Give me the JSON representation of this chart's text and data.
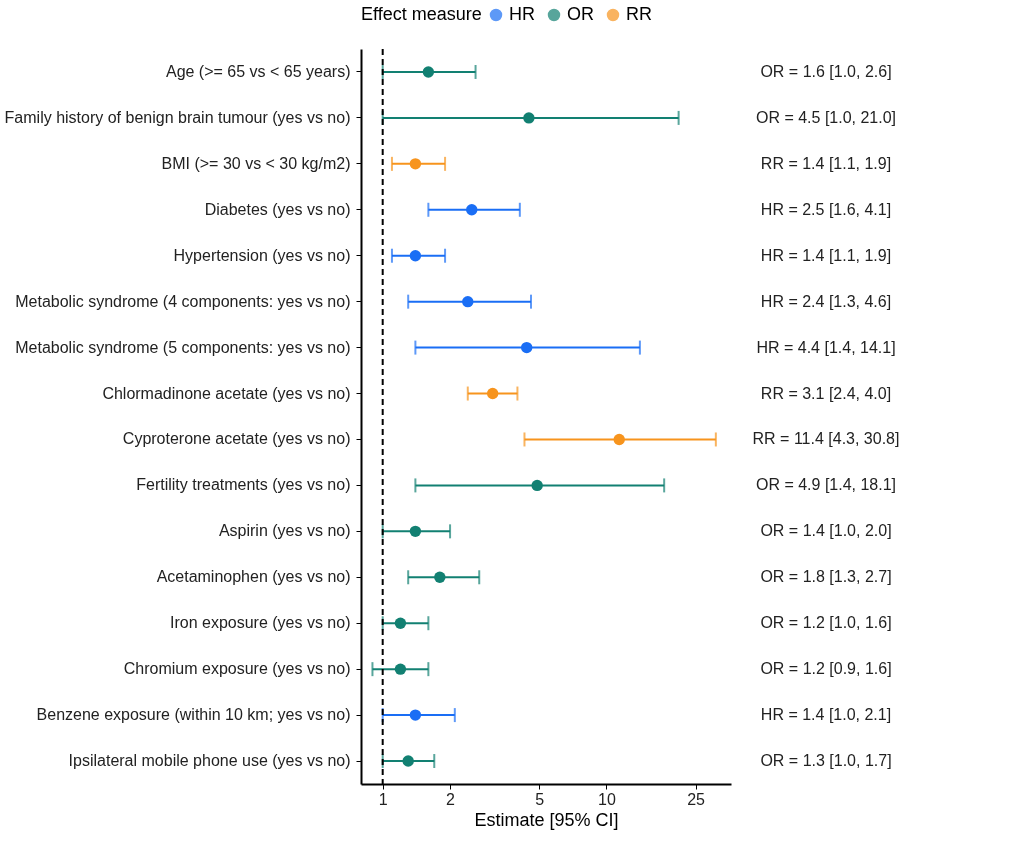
{
  "chart_data": {
    "type": "scatter",
    "orientation": "horizontal",
    "xlabel": "Estimate [95% CI]",
    "legend_title": "Effect measure",
    "legend": "top",
    "grid": false,
    "marker": "circle",
    "log": "x",
    "categories": [
      "Age (>= 65 vs < 65 years)",
      "Family history of benign brain tumour (yes vs no)",
      "BMI (>= 30 vs < 30 kg/m2)",
      "Diabetes (yes vs no)",
      "Hypertension (yes vs no)",
      "Metabolic syndrome (4 components: yes vs no)",
      "Metabolic syndrome (5 components: yes vs no)",
      "Chlormadinone acetate (yes vs no)",
      "Cyproterone acetate (yes vs no)",
      "Fertility treatments (yes vs no)",
      "Aspirin (yes vs no)",
      "Acetaminophen (yes vs no)",
      "Iron exposure (yes vs no)",
      "Chromium exposure (yes vs no)",
      "Benzene exposure (within 10 km; yes vs no)",
      "Ipsilateral mobile phone use (yes vs no)"
    ],
    "xlim": [
      0.8,
      36
    ],
    "xticks": [
      1,
      2,
      5,
      10,
      25
    ],
    "annotations": [
      "OR = 1.6 [1.0, 2.6]",
      "OR = 4.5 [1.0, 21.0]",
      "RR = 1.4 [1.1, 1.9]",
      "HR = 2.5 [1.6, 4.1]",
      "HR = 1.4 [1.1, 1.9]",
      "HR = 2.4 [1.3, 4.6]",
      "HR = 4.4 [1.4, 14.1]",
      "RR = 3.1 [2.4, 4.0]",
      "RR = 11.4 [4.3, 30.8]",
      "OR = 4.9 [1.4, 18.1]",
      "OR = 1.4 [1.0, 2.0]",
      "OR = 1.8 [1.3, 2.7]",
      "OR = 1.2 [1.0, 1.6]",
      "OR = 1.2 [0.9, 1.6]",
      "HR = 1.4 [1.0, 2.1]",
      "OR = 1.3 [1.0, 1.7]"
    ],
    "ref_lines": [
      {
        "axis": "x",
        "value": 1,
        "color": "#000000",
        "line_style": "dashed"
      }
    ],
    "series": [
      {
        "name": "HR",
        "color": "#1a6ef5",
        "values": [
          null,
          null,
          null,
          2.5,
          1.4,
          2.4,
          4.4,
          null,
          null,
          null,
          null,
          null,
          null,
          null,
          1.4,
          null
        ],
        "errors": [
          null,
          null,
          null,
          [
            1.6,
            4.1
          ],
          [
            1.1,
            1.9
          ],
          [
            1.3,
            4.6
          ],
          [
            1.4,
            14.1
          ],
          null,
          null,
          null,
          null,
          null,
          null,
          null,
          [
            1.0,
            2.1
          ],
          null
        ]
      },
      {
        "name": "OR",
        "color": "#128072",
        "values": [
          1.6,
          4.5,
          null,
          null,
          null,
          null,
          null,
          null,
          null,
          4.9,
          1.4,
          1.8,
          1.2,
          1.2,
          null,
          1.3
        ],
        "errors": [
          [
            1.0,
            2.6
          ],
          [
            1.0,
            21.0
          ],
          null,
          null,
          null,
          null,
          null,
          null,
          null,
          [
            1.4,
            18.1
          ],
          [
            1.0,
            2.0
          ],
          [
            1.3,
            2.7
          ],
          [
            1.0,
            1.6
          ],
          [
            0.9,
            1.6
          ],
          null,
          [
            1.0,
            1.7
          ]
        ]
      },
      {
        "name": "RR",
        "color": "#f7941d",
        "values": [
          null,
          null,
          1.4,
          null,
          null,
          null,
          null,
          3.1,
          11.4,
          null,
          null,
          null,
          null,
          null,
          null,
          null
        ],
        "errors": [
          null,
          null,
          [
            1.1,
            1.9
          ],
          null,
          null,
          null,
          null,
          [
            2.4,
            4.0
          ],
          [
            4.3,
            30.8
          ],
          null,
          null,
          null,
          null,
          null,
          null,
          null
        ]
      }
    ]
  }
}
